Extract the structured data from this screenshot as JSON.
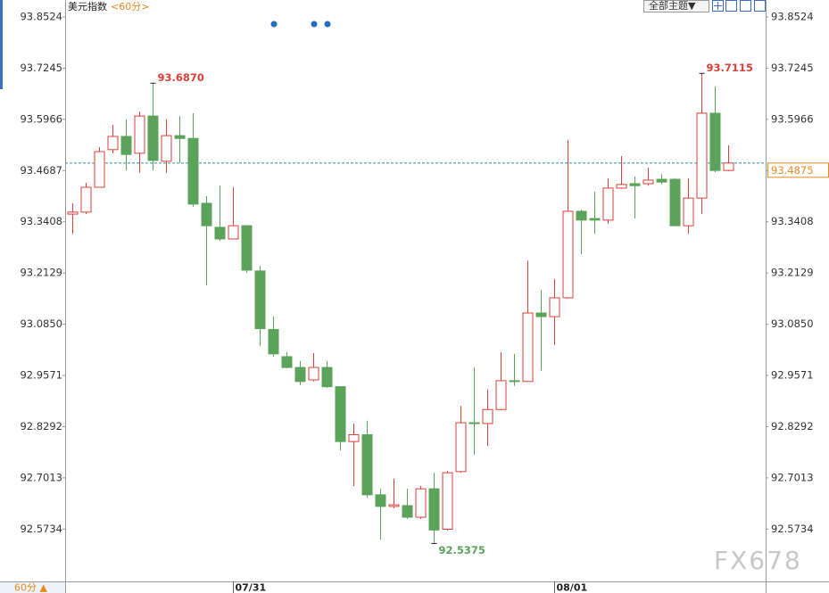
{
  "chart_data": {
    "type": "candlestick",
    "title": "美元指数",
    "period": "<60分>",
    "theme_menu": "全部主题▼",
    "period_button": "60分 ▲",
    "watermark": "FX678",
    "categories": [
      null,
      null,
      null,
      null,
      null,
      null,
      null,
      null,
      null,
      null,
      null,
      null,
      "07/31",
      null,
      null,
      null,
      null,
      null,
      null,
      null,
      null,
      null,
      null,
      null,
      null,
      null,
      null,
      null,
      null,
      null,
      null,
      null,
      null,
      null,
      null,
      null,
      "08/01",
      null,
      null,
      null,
      null,
      null,
      null,
      null,
      null,
      null,
      null,
      null,
      null,
      null
    ],
    "open": [
      93.36,
      93.365,
      93.427,
      93.521,
      93.554,
      93.512,
      93.605,
      93.492,
      93.556,
      93.549,
      93.387,
      93.327,
      93.298,
      93.331,
      93.218,
      93.072,
      93.004,
      92.977,
      92.946,
      92.977,
      92.929,
      92.792,
      92.809,
      92.659,
      92.63,
      92.632,
      92.603,
      92.674,
      92.573,
      92.717,
      92.839,
      92.837,
      92.872,
      92.944,
      92.942,
      93.113,
      93.104,
      93.151,
      93.367,
      93.349,
      93.345,
      93.425,
      93.436,
      93.436,
      93.447,
      93.447,
      93.331,
      93.4,
      93.612,
      93.469
    ],
    "high": [
      93.387,
      93.438,
      93.527,
      93.583,
      93.597,
      93.616,
      93.687,
      93.597,
      93.605,
      93.612,
      93.405,
      93.431,
      93.427,
      93.331,
      93.231,
      93.104,
      93.015,
      92.993,
      93.013,
      92.993,
      92.929,
      92.837,
      92.844,
      92.674,
      92.699,
      92.674,
      92.681,
      92.714,
      92.719,
      92.881,
      92.977,
      92.922,
      93.015,
      93.011,
      93.244,
      93.171,
      93.198,
      93.545,
      93.371,
      93.416,
      93.449,
      93.505,
      93.454,
      93.476,
      93.46,
      93.449,
      93.449,
      93.7115,
      93.679,
      93.532
    ],
    "low": [
      93.311,
      93.36,
      93.427,
      93.512,
      93.469,
      93.463,
      93.469,
      93.463,
      93.488,
      93.378,
      93.182,
      93.293,
      93.298,
      93.213,
      93.031,
      93.004,
      92.975,
      92.933,
      92.942,
      92.926,
      92.77,
      92.681,
      92.652,
      92.547,
      92.625,
      92.599,
      92.599,
      92.5375,
      92.569,
      92.714,
      92.759,
      92.781,
      92.87,
      92.931,
      92.942,
      92.97,
      93.033,
      93.149,
      93.26,
      93.311,
      93.336,
      93.423,
      93.349,
      93.431,
      93.434,
      93.331,
      93.311,
      93.36,
      93.465,
      93.467
    ],
    "close": [
      93.365,
      93.427,
      93.516,
      93.554,
      93.509,
      93.605,
      93.494,
      93.556,
      93.549,
      93.385,
      93.331,
      93.298,
      93.331,
      93.22,
      93.074,
      93.011,
      92.977,
      92.942,
      92.977,
      92.929,
      92.792,
      92.809,
      92.659,
      92.63,
      92.634,
      92.603,
      92.674,
      92.571,
      92.714,
      92.839,
      92.837,
      92.872,
      92.944,
      92.942,
      93.113,
      93.104,
      93.151,
      93.367,
      93.345,
      93.345,
      93.425,
      93.434,
      93.431,
      93.445,
      93.44,
      93.331,
      93.4,
      93.612,
      93.469,
      93.4875
    ],
    "up_color": "#d9413a",
    "down_color": "#5ba35b",
    "last_price": 93.4875,
    "last_color": "#e8891e",
    "ylim": [
      92.4427,
      93.8947
    ],
    "yticks": [
      93.8524,
      93.7245,
      93.5966,
      93.4687,
      93.3408,
      93.2129,
      {
        "value": 93.085,
        "label": "93.0850"
      },
      92.9571,
      92.8292,
      92.7013,
      92.5734
    ],
    "annotations": [
      {
        "label": "93.6870",
        "candle": 6,
        "at": "high"
      },
      {
        "label": "92.5375",
        "candle": 27,
        "at": "low"
      },
      {
        "label": "93.7115",
        "candle": 47,
        "at": "high"
      }
    ]
  }
}
